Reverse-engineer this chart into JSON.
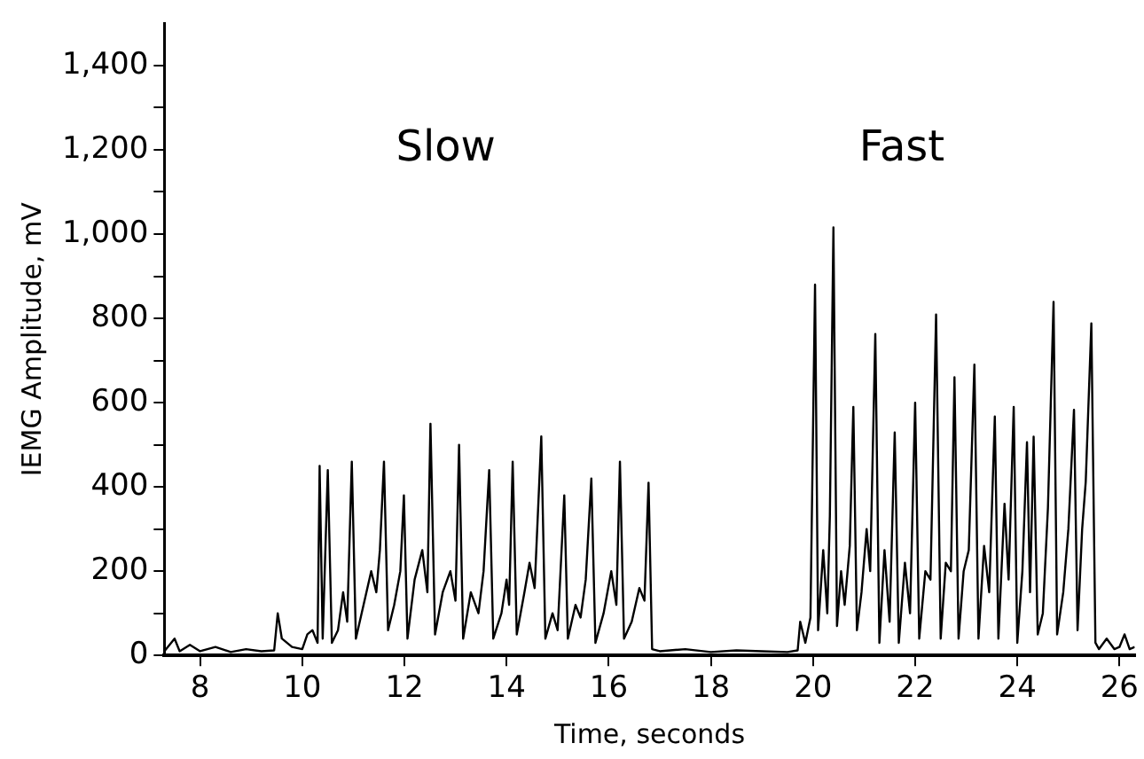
{
  "chart_data": {
    "type": "line",
    "xlabel": "Time, seconds",
    "ylabel": "IEMG Amplitude, mV",
    "annotations": [
      "Slow",
      "Fast"
    ],
    "xlim": [
      7.3,
      26.3
    ],
    "xticks": [
      8,
      10,
      12,
      14,
      16,
      18,
      20,
      22,
      24,
      26
    ],
    "ylim": [
      0,
      1500
    ],
    "yticks": [
      {
        "value": 0,
        "label": "0"
      },
      {
        "value": 100,
        "label": null
      },
      {
        "value": 200,
        "label": "200"
      },
      {
        "value": 300,
        "label": null
      },
      {
        "value": 400,
        "label": "400"
      },
      {
        "value": 500,
        "label": null
      },
      {
        "value": 600,
        "label": "600"
      },
      {
        "value": 700,
        "label": null
      },
      {
        "value": 800,
        "label": "800"
      },
      {
        "value": 900,
        "label": null
      },
      {
        "value": 1000,
        "label": "1,000"
      },
      {
        "value": 1100,
        "label": null
      },
      {
        "value": 1200,
        "label": "1,200"
      },
      {
        "value": 1300,
        "label": null
      },
      {
        "value": 1400,
        "label": "1,400"
      }
    ],
    "grid": false,
    "legend": false,
    "marker": "none",
    "line_style": "solid",
    "x": [
      7.3,
      7.5,
      7.6,
      7.8,
      8.0,
      8.3,
      8.6,
      8.9,
      9.2,
      9.45,
      9.52,
      9.6,
      9.8,
      10.0,
      10.1,
      10.2,
      10.3,
      10.34,
      10.4,
      10.5,
      10.58,
      10.7,
      10.8,
      10.88,
      10.97,
      11.05,
      11.2,
      11.35,
      11.45,
      11.52,
      11.6,
      11.68,
      11.8,
      11.92,
      11.99,
      12.06,
      12.2,
      12.35,
      12.45,
      12.51,
      12.6,
      12.75,
      12.9,
      13.0,
      13.07,
      13.15,
      13.3,
      13.45,
      13.55,
      13.66,
      13.74,
      13.9,
      14.0,
      14.05,
      14.12,
      14.2,
      14.35,
      14.45,
      14.55,
      14.68,
      14.76,
      14.9,
      15.0,
      15.13,
      15.2,
      15.35,
      15.45,
      15.55,
      15.66,
      15.74,
      15.9,
      16.05,
      16.15,
      16.22,
      16.3,
      16.45,
      16.6,
      16.7,
      16.78,
      16.85,
      17.0,
      17.5,
      18.0,
      18.5,
      19.0,
      19.5,
      19.7,
      19.75,
      19.85,
      19.95,
      20.04,
      20.1,
      20.2,
      20.28,
      20.33,
      20.4,
      20.47,
      20.55,
      20.62,
      20.72,
      20.79,
      20.86,
      20.95,
      21.05,
      21.12,
      21.22,
      21.3,
      21.4,
      21.5,
      21.6,
      21.68,
      21.8,
      21.9,
      22.0,
      22.08,
      22.2,
      22.3,
      22.41,
      22.5,
      22.6,
      22.7,
      22.77,
      22.85,
      22.95,
      23.05,
      23.16,
      23.24,
      23.35,
      23.45,
      23.56,
      23.63,
      23.75,
      23.83,
      23.93,
      24.0,
      24.1,
      24.19,
      24.25,
      24.32,
      24.4,
      24.5,
      24.6,
      24.71,
      24.78,
      24.9,
      25.0,
      25.11,
      25.18,
      25.27,
      25.34,
      25.45,
      25.53,
      25.6,
      25.75,
      25.9,
      26.0,
      26.1,
      26.2,
      26.3
    ],
    "series": [
      {
        "color": "#000000",
        "values": [
          10,
          40,
          10,
          25,
          10,
          20,
          8,
          15,
          10,
          12,
          100,
          40,
          20,
          15,
          50,
          60,
          30,
          450,
          40,
          440,
          30,
          60,
          150,
          80,
          460,
          40,
          120,
          200,
          150,
          250,
          460,
          60,
          120,
          200,
          380,
          40,
          180,
          250,
          150,
          550,
          50,
          150,
          200,
          130,
          500,
          40,
          150,
          100,
          200,
          440,
          40,
          100,
          180,
          120,
          460,
          50,
          150,
          220,
          160,
          520,
          40,
          100,
          60,
          380,
          40,
          120,
          90,
          180,
          420,
          30,
          100,
          200,
          120,
          460,
          40,
          80,
          160,
          130,
          410,
          15,
          10,
          15,
          8,
          12,
          10,
          8,
          12,
          80,
          30,
          90,
          880,
          60,
          250,
          100,
          330,
          1016,
          70,
          200,
          120,
          260,
          590,
          60,
          150,
          300,
          200,
          763,
          30,
          250,
          80,
          529,
          30,
          220,
          100,
          600,
          40,
          200,
          180,
          809,
          40,
          220,
          200,
          660,
          40,
          200,
          250,
          690,
          40,
          260,
          150,
          567,
          40,
          360,
          180,
          590,
          30,
          200,
          506,
          150,
          519,
          50,
          100,
          350,
          839,
          50,
          150,
          300,
          583,
          60,
          300,
          412,
          788,
          30,
          15,
          40,
          15,
          20,
          50,
          15,
          20
        ]
      }
    ]
  }
}
